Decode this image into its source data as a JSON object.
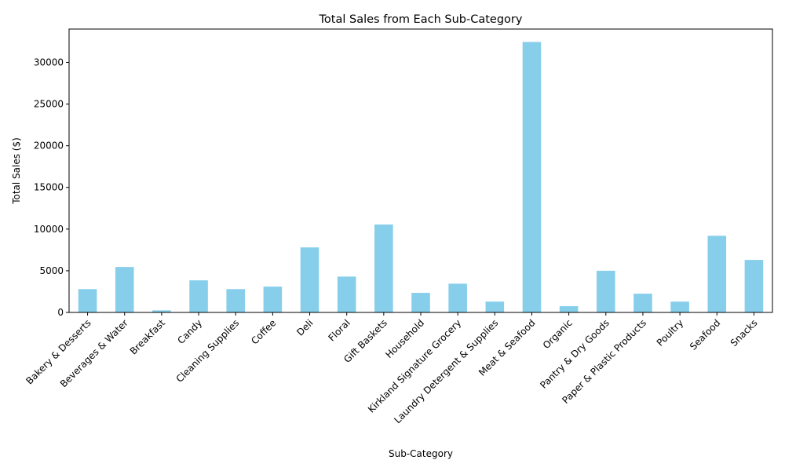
{
  "chart_data": {
    "type": "bar",
    "title": "Total Sales from Each Sub-Category",
    "xlabel": "Sub-Category",
    "ylabel": "Total Sales ($)",
    "ylim": [
      0,
      34000
    ],
    "yticks": [
      0,
      5000,
      10000,
      15000,
      20000,
      25000,
      30000
    ],
    "grid": false,
    "bar_color": "#87ceeb",
    "categories": [
      "Bakery & Desserts",
      "Beverages & Water",
      "Breakfast",
      "Candy",
      "Cleaning Supplies",
      "Coffee",
      "Deli",
      "Floral",
      "Gift Baskets",
      "Household",
      "Kirkland Signature Grocery",
      "Laundry Detergent & Supplies",
      "Meat & Seafood",
      "Organic",
      "Pantry & Dry Goods",
      "Paper & Plastic Products",
      "Poultry",
      "Seafood",
      "Snacks"
    ],
    "values": [
      2800,
      5450,
      250,
      3850,
      2800,
      3100,
      7800,
      4300,
      10550,
      2350,
      3450,
      1300,
      32450,
      750,
      5000,
      2250,
      1300,
      9200,
      6300
    ]
  }
}
